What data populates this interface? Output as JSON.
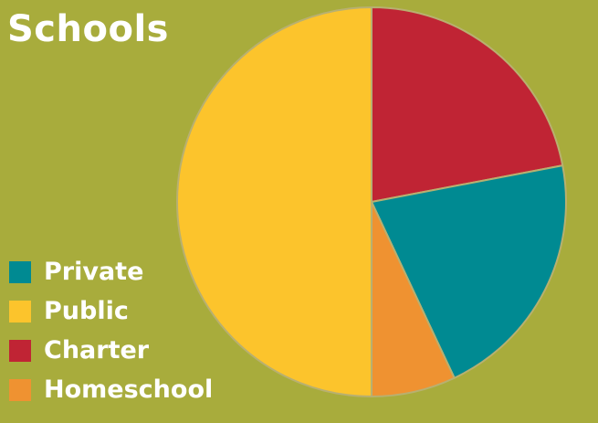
{
  "chart_data": {
    "type": "pie",
    "title": "Schools",
    "legend_position": "bottom-left",
    "slices": [
      {
        "label": "Charter",
        "value": 22,
        "color": "#c02434"
      },
      {
        "label": "Private",
        "value": 21,
        "color": "#008a92"
      },
      {
        "label": "Homeschool",
        "value": 7,
        "color": "#ef9231"
      },
      {
        "label": "Public",
        "value": 50,
        "color": "#fcc42c"
      }
    ],
    "legend": [
      {
        "label": "Private",
        "color": "#008a92"
      },
      {
        "label": "Public",
        "color": "#fcc42c"
      },
      {
        "label": "Charter",
        "color": "#c02434"
      },
      {
        "label": "Homeschool",
        "color": "#ef9231"
      }
    ]
  },
  "colors": {
    "background": "#a8ac3c",
    "text": "#ffffff",
    "slice_border": "#b8b070"
  }
}
